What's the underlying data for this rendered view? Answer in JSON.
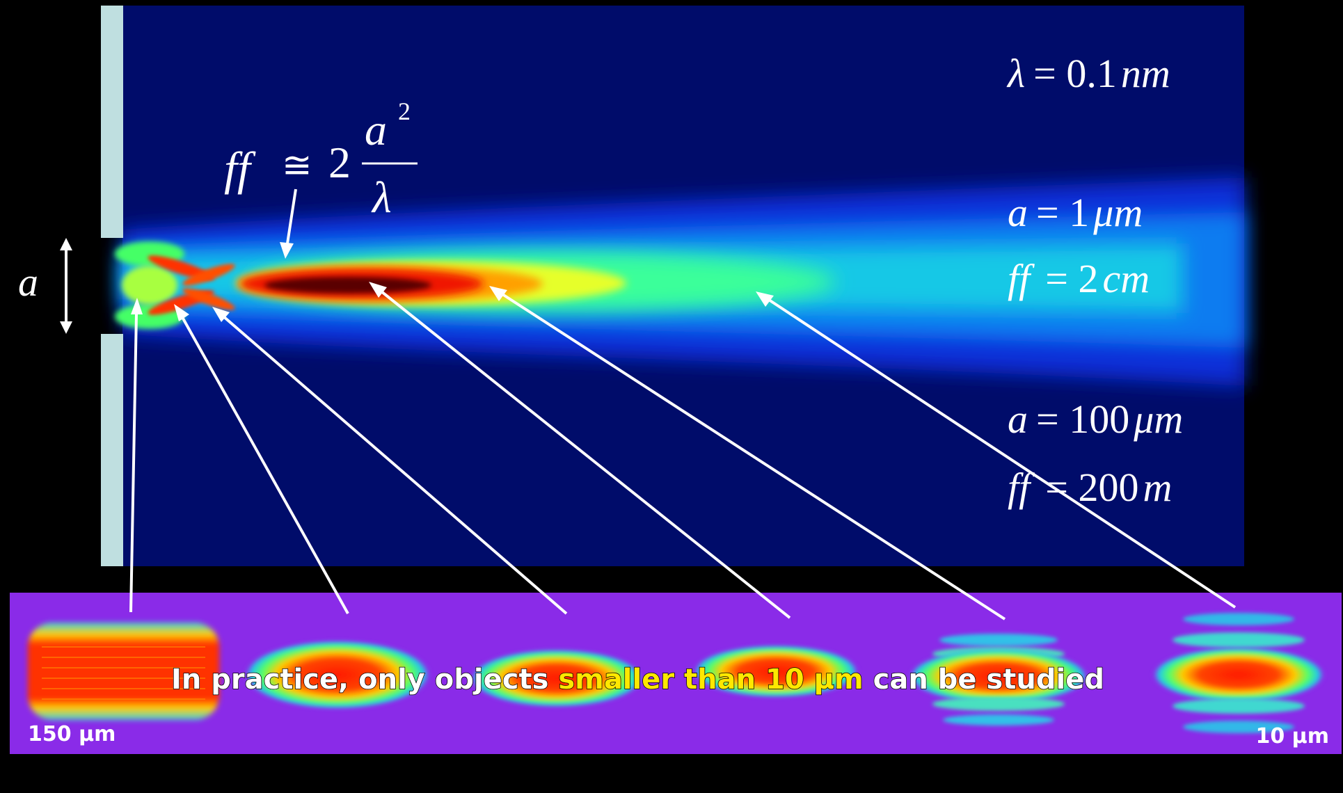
{
  "formula": {
    "lhs": "ff",
    "approx": "≅",
    "coef": "2",
    "numerator": "a",
    "exponent": "2",
    "denominator": "λ"
  },
  "aperture_label": "a",
  "params": {
    "wavelength": {
      "symbol": "λ",
      "value": "= 0.1",
      "unit": "nm"
    },
    "case1": {
      "a_symbol": "a",
      "a_value": "= 1",
      "a_unit": "μm",
      "ff_symbol": "ff",
      "ff_value": "= 2",
      "ff_unit": "cm"
    },
    "case2": {
      "a_symbol": "a",
      "a_value": "= 100",
      "a_unit": "μm",
      "ff_symbol": "ff",
      "ff_value": "= 200",
      "ff_unit": "m"
    }
  },
  "caption": {
    "part1": "In practice, only objects ",
    "part2": "smaller than 10 μm",
    "part3": " can be studied",
    "color_main": "#ffffff",
    "color_highlight": "#ffe800"
  },
  "scale_left": "150 μm",
  "scale_right": "10 μm",
  "colors": {
    "background": "#000000",
    "field": "#000c6a",
    "wall": "#bfdfe0",
    "strip": "#8a2be8",
    "arrows": "#ffffff"
  }
}
